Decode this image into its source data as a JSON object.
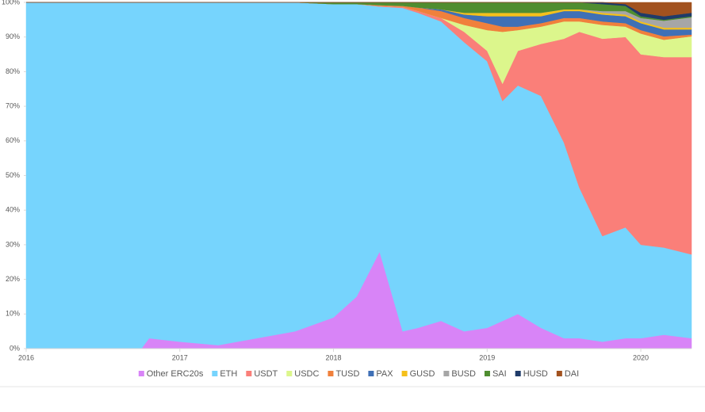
{
  "chart_data": {
    "type": "stacked-area-percent",
    "x": [
      2016,
      2016.5,
      2016.75,
      2016.8,
      2017,
      2017.25,
      2017.5,
      2017.75,
      2018,
      2018.15,
      2018.3,
      2018.45,
      2018.55,
      2018.7,
      2018.85,
      2019,
      2019.1,
      2019.2,
      2019.35,
      2019.5,
      2019.6,
      2019.75,
      2019.9,
      2020,
      2020.15,
      2020.33
    ],
    "xlim": [
      2016,
      2020.33
    ],
    "xticks": [
      2016,
      2017,
      2018,
      2019,
      2020
    ],
    "ylim": [
      0,
      100
    ],
    "yticks": [
      {
        "value": 0,
        "label": "0%"
      },
      {
        "value": 10,
        "label": "10%"
      },
      {
        "value": 20,
        "label": "20%"
      },
      {
        "value": 30,
        "label": "30%"
      },
      {
        "value": 40,
        "label": "40%"
      },
      {
        "value": 50,
        "label": "50%"
      },
      {
        "value": 60,
        "label": "60%"
      },
      {
        "value": 70,
        "label": "70%"
      },
      {
        "value": 80,
        "label": "80%"
      },
      {
        "value": 90,
        "label": "90%"
      },
      {
        "value": 100,
        "label": "100%"
      }
    ],
    "legend": "bottom",
    "series": [
      {
        "name": "Other ERC20s",
        "color": "#d884f7",
        "values": [
          0,
          0,
          0,
          3,
          2,
          1,
          3,
          5,
          9,
          15,
          28,
          5,
          6,
          8,
          5,
          6,
          8,
          10,
          6,
          3,
          3,
          2,
          3,
          3,
          4,
          3
        ]
      },
      {
        "name": "ETH",
        "color": "#76d4fd",
        "values": [
          100,
          100,
          100,
          97,
          98,
          99,
          97,
          95,
          90.5,
          84.5,
          70.8,
          93.4,
          91,
          86.5,
          83.5,
          77,
          63.5,
          66,
          67,
          56.5,
          43.5,
          30.5,
          32,
          27,
          25.2,
          24.2
        ]
      },
      {
        "name": "USDT",
        "color": "#fa7f79",
        "values": [
          0,
          0,
          0,
          0,
          0,
          0,
          0,
          0,
          0,
          0,
          0.2,
          0.3,
          0.5,
          1,
          3,
          3,
          5,
          10,
          15,
          30,
          45,
          57,
          55,
          55,
          55,
          57
        ]
      },
      {
        "name": "USDC",
        "color": "#dcf68c",
        "values": [
          0,
          0,
          0,
          0,
          0,
          0,
          0,
          0,
          0,
          0,
          0,
          0,
          0,
          0,
          2,
          6,
          15,
          6,
          5,
          5,
          3,
          4,
          3,
          6,
          5,
          6
        ]
      },
      {
        "name": "TUSD",
        "color": "#f0803c",
        "values": [
          0,
          0,
          0,
          0,
          0,
          0,
          0,
          0,
          0,
          0,
          0.2,
          0.3,
          1,
          2,
          2,
          2,
          1.5,
          1,
          1,
          1,
          1,
          1,
          1,
          1,
          1,
          0.5
        ]
      },
      {
        "name": "PAX",
        "color": "#3f70b6",
        "values": [
          0,
          0,
          0,
          0,
          0,
          0,
          0,
          0,
          0,
          0,
          0,
          0,
          0,
          0.5,
          1,
          2,
          3,
          3,
          2,
          2,
          2,
          2,
          2,
          2,
          2,
          1.5
        ]
      },
      {
        "name": "GUSD",
        "color": "#f5c01a",
        "values": [
          0,
          0,
          0,
          0,
          0,
          0,
          0,
          0,
          0,
          0,
          0,
          0,
          0,
          0,
          0.5,
          1,
          1,
          1,
          1,
          0.5,
          0.5,
          0.5,
          0.5,
          0.5,
          0.5,
          0.5
        ]
      },
      {
        "name": "BUSD",
        "color": "#a6a6a6",
        "values": [
          0,
          0,
          0,
          0,
          0,
          0,
          0,
          0,
          0,
          0,
          0,
          0,
          0,
          0,
          0,
          0,
          0,
          0,
          0,
          0,
          0,
          0.5,
          1,
          1,
          2,
          3
        ]
      },
      {
        "name": "SAI",
        "color": "#4f8d30",
        "values": [
          0,
          0,
          0,
          0,
          0,
          0,
          0,
          0,
          0.5,
          0.5,
          0.8,
          1,
          1.5,
          2,
          3,
          3,
          3,
          3,
          3,
          2,
          2,
          2,
          1.5,
          0.5,
          0.3,
          0.3
        ]
      },
      {
        "name": "HUSD",
        "color": "#1f3b69",
        "values": [
          0,
          0,
          0,
          0,
          0,
          0,
          0,
          0,
          0,
          0,
          0,
          0,
          0,
          0,
          0,
          0,
          0,
          0,
          0,
          0,
          0,
          0.5,
          0.5,
          1,
          1,
          1
        ]
      },
      {
        "name": "DAI",
        "color": "#a2521f",
        "values": [
          0,
          0,
          0,
          0,
          0,
          0,
          0,
          0,
          0,
          0,
          0,
          0,
          0,
          0,
          0,
          0,
          0,
          0,
          0,
          0,
          0,
          0,
          0.5,
          3,
          4,
          3
        ]
      }
    ]
  }
}
